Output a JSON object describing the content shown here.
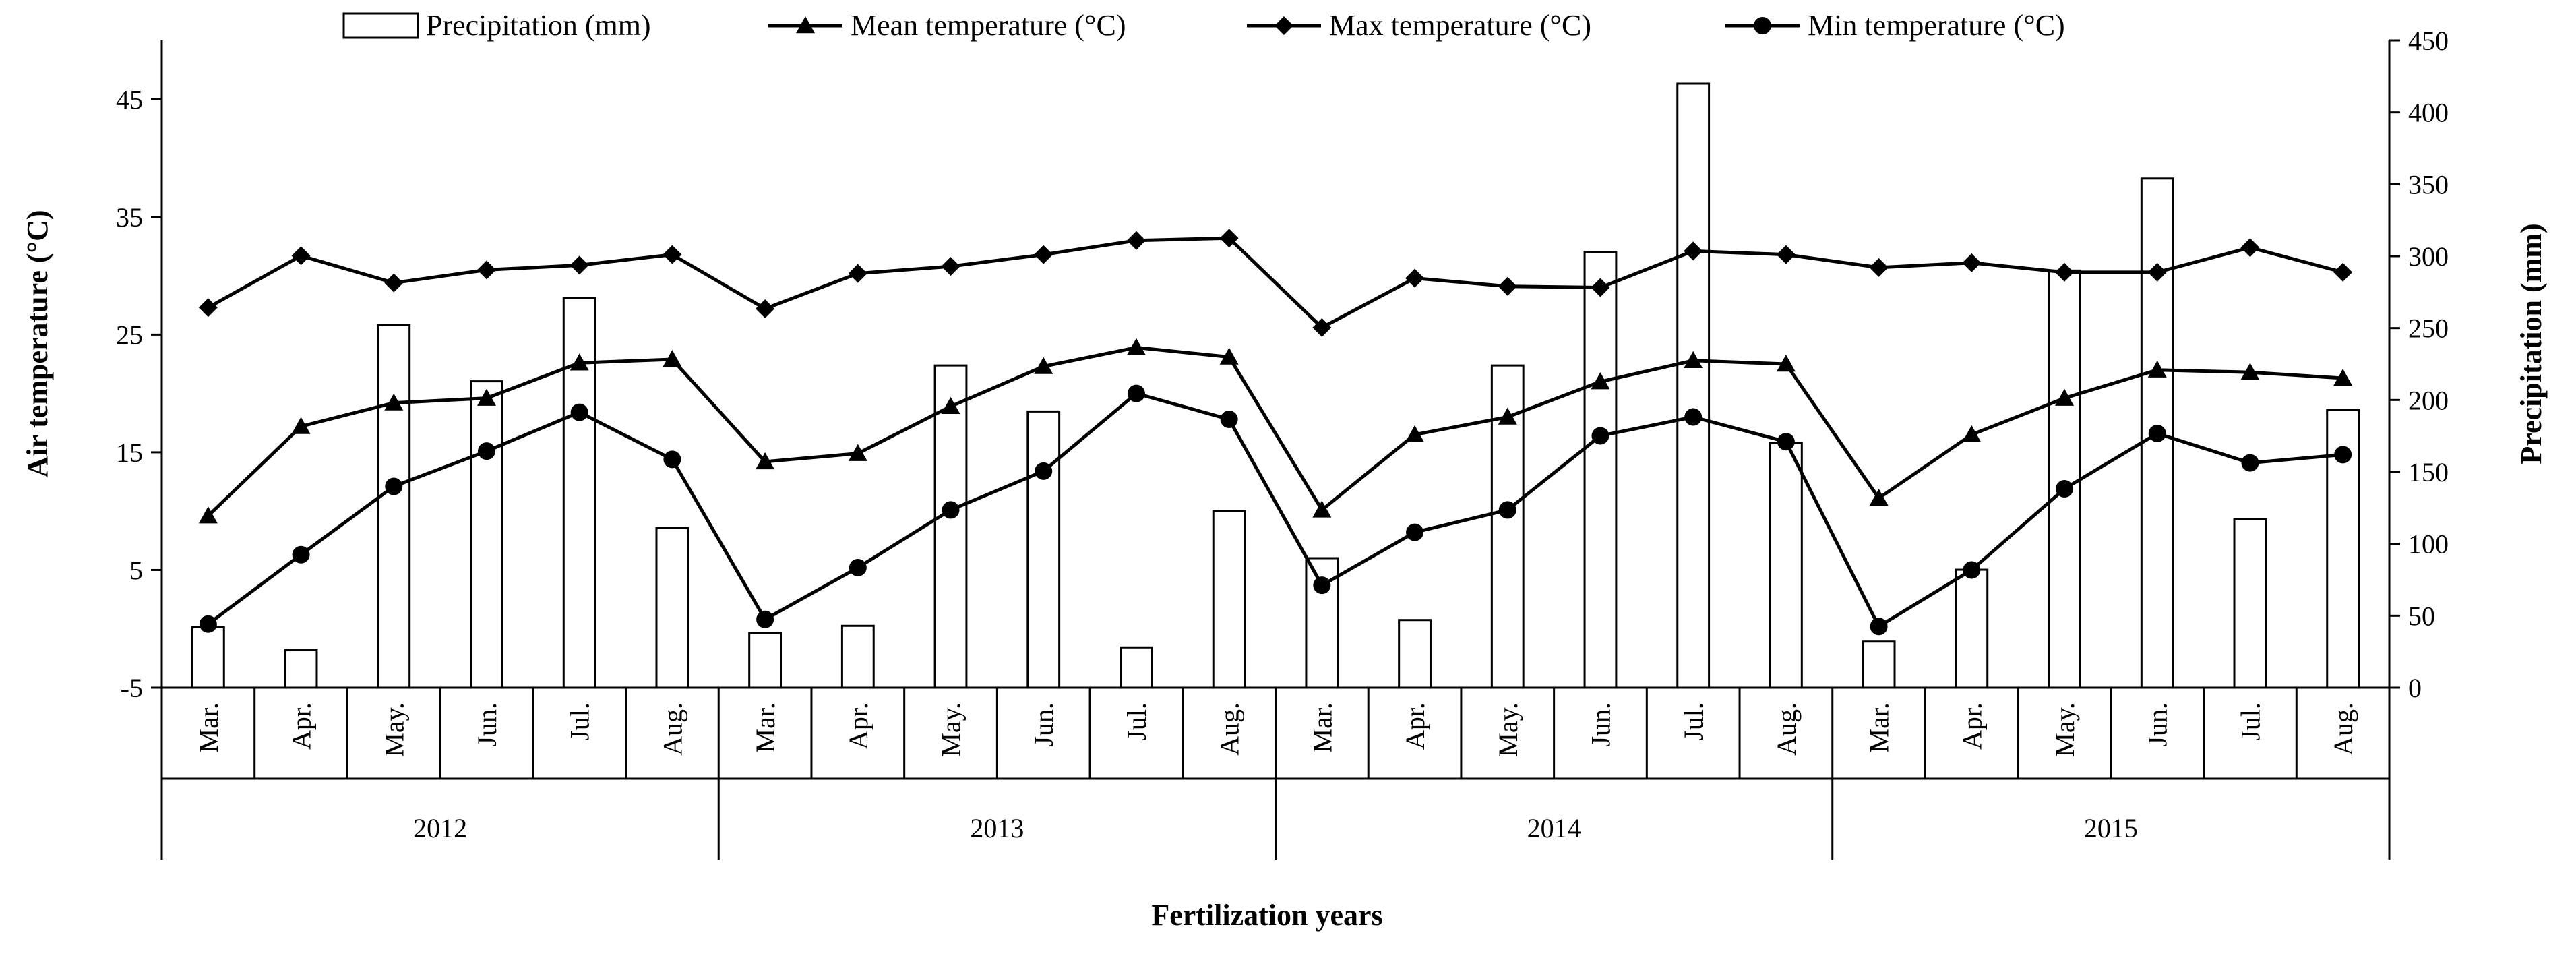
{
  "chart_data": {
    "type": "bar+line",
    "title": "",
    "xlabel": "Fertilization years",
    "ylabel_left": "Air temperature (°C)",
    "ylabel_right": "Precipitation (mm)",
    "ylim_left": [
      -5,
      50
    ],
    "yticks_left": [
      -5,
      5,
      15,
      25,
      35,
      45
    ],
    "ylim_right": [
      0,
      450
    ],
    "yticks_right": [
      0,
      50,
      100,
      150,
      200,
      250,
      300,
      350,
      400,
      450
    ],
    "legend_position": "top",
    "groups": [
      {
        "year": "2012",
        "months": [
          "Mar.",
          "Apr.",
          "May.",
          "Jun.",
          "Jul.",
          "Aug."
        ]
      },
      {
        "year": "2013",
        "months": [
          "Mar.",
          "Apr.",
          "May.",
          "Jun.",
          "Jul.",
          "Aug."
        ]
      },
      {
        "year": "2014",
        "months": [
          "Mar.",
          "Apr.",
          "May.",
          "Jun.",
          "Jul.",
          "Aug."
        ]
      },
      {
        "year": "2015",
        "months": [
          "Mar.",
          "Apr.",
          "May.",
          "Jun.",
          "Jul.",
          "Aug."
        ]
      }
    ],
    "series": [
      {
        "name": "Precipitation (mm)",
        "kind": "bar",
        "axis": "right",
        "marker": "hollow-bar",
        "values": [
          42,
          26,
          252,
          213,
          271,
          111,
          38,
          43,
          224,
          192,
          28,
          123,
          90,
          47,
          224,
          303,
          420,
          170,
          32,
          82,
          290,
          354,
          117,
          193
        ]
      },
      {
        "name": "Mean temperature (°C)",
        "kind": "line",
        "axis": "left",
        "marker": "triangle",
        "values": [
          9.6,
          17.2,
          19.2,
          19.6,
          22.6,
          22.9,
          14.2,
          14.9,
          18.9,
          22.3,
          23.9,
          23.1,
          10.1,
          16.5,
          18.0,
          21.0,
          22.8,
          22.5,
          11.1,
          16.5,
          19.6,
          22.0,
          21.8,
          21.3
        ]
      },
      {
        "name": "Max temperature (°C)",
        "kind": "line",
        "axis": "left",
        "marker": "diamond",
        "values": [
          27.3,
          31.7,
          29.4,
          30.5,
          30.9,
          31.8,
          27.2,
          30.2,
          30.8,
          31.8,
          33.0,
          33.2,
          25.6,
          29.8,
          29.1,
          29.0,
          32.1,
          31.8,
          30.7,
          31.1,
          30.3,
          30.3,
          32.4,
          30.3
        ]
      },
      {
        "name": "Min temperature (°C)",
        "kind": "line",
        "axis": "left",
        "marker": "circle",
        "values": [
          0.4,
          6.3,
          12.1,
          15.1,
          18.4,
          14.4,
          0.8,
          5.2,
          10.1,
          13.4,
          20.0,
          17.8,
          3.7,
          8.2,
          10.1,
          16.4,
          18.0,
          15.9,
          0.2,
          5.0,
          11.9,
          16.6,
          14.1,
          14.8
        ]
      }
    ]
  }
}
